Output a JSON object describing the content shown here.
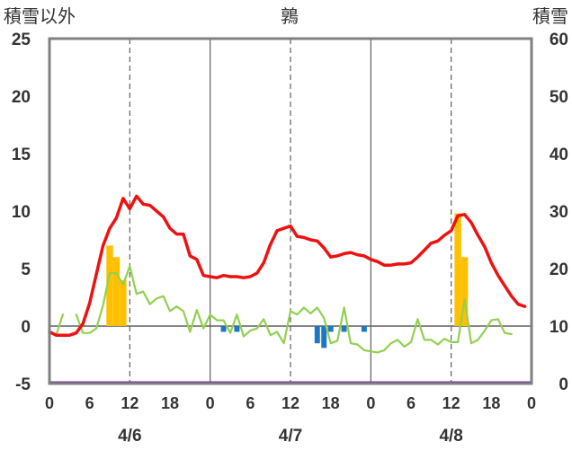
{
  "chart_data": {
    "type": "line",
    "title": "鶉",
    "left_axis_title": "積雪以外",
    "right_axis_title": "積雪",
    "ylim_left": [
      -5,
      25
    ],
    "ylim_right": [
      0,
      60
    ],
    "left_ticks": [
      "25",
      "20",
      "15",
      "10",
      "5",
      "0",
      "-5"
    ],
    "right_ticks": [
      "60",
      "50",
      "40",
      "30",
      "20",
      "10",
      "0"
    ],
    "x_hour_ticks": [
      "0",
      "6",
      "12",
      "18",
      "0",
      "6",
      "12",
      "18",
      "0",
      "6",
      "12",
      "18",
      "0"
    ],
    "date_labels": [
      "4/6",
      "4/7",
      "4/8"
    ],
    "grid": "dashed vertical at 12h, solid vertical at 0h, solid horizontal at 0",
    "colors": {
      "temperature": "#ee1111",
      "secondary": "#92d050",
      "snowfall": "#ffc000",
      "precip": "#1f77c4",
      "snow_depth": "#7030a0",
      "frame": "#808080"
    },
    "series": [
      {
        "key": "temperature",
        "hours": [
          0,
          1,
          2,
          3,
          4,
          5,
          6,
          7,
          8,
          9,
          10,
          11,
          12,
          13,
          14,
          15,
          16,
          17,
          18,
          19,
          20,
          21,
          22,
          23,
          24,
          25,
          26,
          27,
          28,
          29,
          30,
          31,
          32,
          33,
          34,
          35,
          36,
          37,
          38,
          39,
          40,
          41,
          42,
          43,
          44,
          45,
          46,
          47,
          48,
          49,
          50,
          51,
          52,
          53,
          54,
          55,
          56,
          57,
          58,
          59,
          60,
          61,
          62,
          63,
          64,
          65,
          66,
          67,
          68,
          69,
          70,
          71
        ],
        "values": [
          -0.5,
          -0.8,
          -0.8,
          -0.8,
          -0.6,
          0.2,
          2.0,
          4.5,
          7.0,
          8.5,
          9.4,
          11.1,
          10.2,
          11.3,
          10.6,
          10.5,
          10.0,
          9.5,
          8.5,
          8.0,
          8.0,
          6.1,
          5.8,
          4.4,
          4.3,
          4.2,
          4.4,
          4.3,
          4.3,
          4.2,
          4.3,
          4.6,
          5.5,
          7.1,
          8.3,
          8.5,
          8.7,
          7.8,
          7.7,
          7.5,
          7.4,
          6.8,
          6.0,
          6.1,
          6.3,
          6.4,
          6.2,
          6.1,
          5.8,
          5.6,
          5.3,
          5.3,
          5.4,
          5.4,
          5.5,
          6.0,
          6.6,
          7.2,
          7.4,
          7.9,
          8.3,
          9.6,
          9.7,
          9.0,
          7.9,
          6.9,
          5.5,
          4.4,
          3.5,
          2.6,
          1.9,
          1.7
        ]
      },
      {
        "key": "secondary",
        "hours": [
          0,
          1,
          2,
          3,
          4,
          5,
          6,
          7,
          8,
          9,
          10,
          11,
          12,
          13,
          14,
          15,
          16,
          17,
          18,
          19,
          20,
          21,
          22,
          23,
          24,
          25,
          26,
          27,
          28,
          29,
          30,
          31,
          32,
          33,
          34,
          35,
          36,
          37,
          38,
          39,
          40,
          41,
          42,
          43,
          44,
          45,
          46,
          47,
          48,
          49,
          50,
          51,
          52,
          53,
          54,
          55,
          56,
          57,
          58,
          59,
          60,
          61,
          62,
          63,
          64,
          65,
          66,
          67,
          68,
          69,
          70,
          71
        ],
        "values": [
          -0.5,
          -0.8,
          1.0,
          null,
          1.0,
          -0.6,
          -0.6,
          -0.2,
          1.8,
          4.6,
          4.6,
          3.6,
          5.2,
          2.8,
          3.0,
          1.9,
          2.4,
          2.6,
          1.3,
          1.7,
          1.3,
          -0.5,
          1.4,
          -0.2,
          1.0,
          0.5,
          0.5,
          -0.6,
          1.0,
          -0.9,
          -0.4,
          -0.2,
          0.6,
          -0.8,
          -0.5,
          -1.5,
          1.3,
          1.0,
          1.6,
          1.1,
          1.6,
          0.7,
          -1.5,
          -1.3,
          1.6,
          -1.5,
          -1.6,
          -2.1,
          -2.2,
          -2.3,
          -2.1,
          -1.5,
          -1.2,
          -1.8,
          -1.4,
          0.6,
          -1.2,
          -1.2,
          -1.6,
          -1.1,
          -1.4,
          -1.4,
          2.3,
          -1.5,
          -1.2,
          -0.4,
          0.5,
          0.6,
          -0.6,
          -0.7,
          null,
          null
        ]
      }
    ],
    "snowfall_bars": [
      {
        "hour": 9,
        "value": 7.0
      },
      {
        "hour": 10,
        "value": 6.0
      },
      {
        "hour": 11,
        "value": 4.0
      },
      {
        "hour": 61,
        "value": 9.8
      },
      {
        "hour": 62,
        "value": 6.0
      }
    ],
    "precip_bars": [
      {
        "hour": 26,
        "value": -0.5
      },
      {
        "hour": 28,
        "value": -0.5
      },
      {
        "hour": 40,
        "value": -1.5
      },
      {
        "hour": 41,
        "value": -1.9
      },
      {
        "hour": 42,
        "value": -0.5
      },
      {
        "hour": 44,
        "value": -0.5
      },
      {
        "hour": 47,
        "value": -0.5
      }
    ],
    "snow_depth": {
      "hours": [
        0,
        72
      ],
      "values": [
        0,
        0
      ]
    }
  }
}
